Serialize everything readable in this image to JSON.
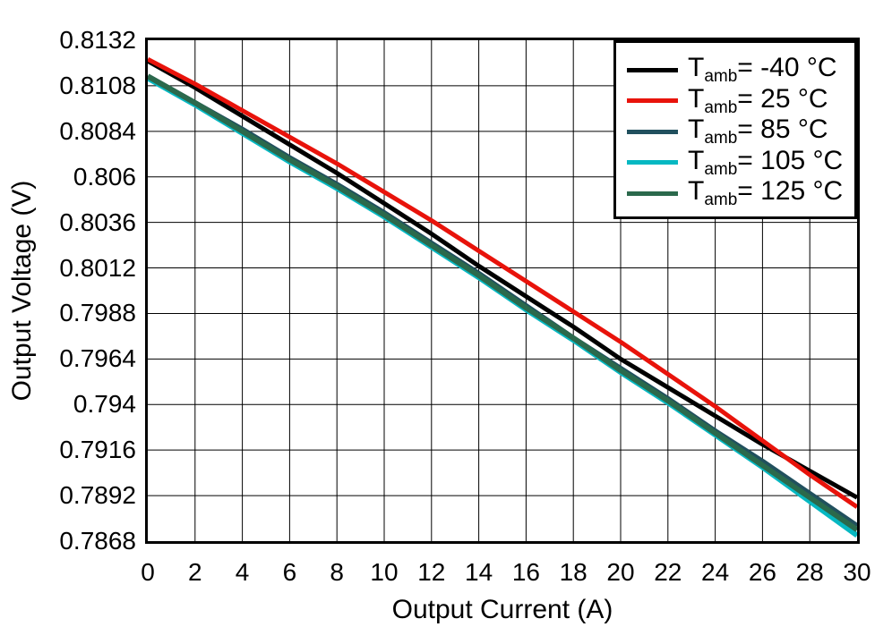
{
  "axes": {
    "x_title": "Output Current (A)",
    "y_title": "Output Voltage (V)",
    "x_tick_labels": [
      "0",
      "2",
      "4",
      "6",
      "8",
      "10",
      "12",
      "14",
      "16",
      "18",
      "20",
      "22",
      "24",
      "26",
      "28",
      "30"
    ],
    "y_tick_labels": [
      "0.8132",
      "0.8108",
      "0.8084",
      "0.806",
      "0.8036",
      "0.8012",
      "0.7988",
      "0.7964",
      "0.794",
      "0.7916",
      "0.7892",
      "0.7868"
    ]
  },
  "legend": {
    "items": [
      {
        "t": "T",
        "sub": "amb",
        "rest": "= -40 °C",
        "color": "#000000"
      },
      {
        "t": "T",
        "sub": "amb",
        "rest": "= 25 °C",
        "color": "#e8130b"
      },
      {
        "t": "T",
        "sub": "amb",
        "rest": "= 85 °C",
        "color": "#21505e"
      },
      {
        "t": "T",
        "sub": "amb",
        "rest": "= 105 °C",
        "color": "#06b8c2"
      },
      {
        "t": "T",
        "sub": "amb",
        "rest": "= 125 °C",
        "color": "#2b694c"
      }
    ]
  },
  "chart_data": {
    "type": "line",
    "title": "",
    "xlabel": "Output Current (A)",
    "ylabel": "Output Voltage (V)",
    "xlim": [
      0,
      30
    ],
    "ylim": [
      0.7868,
      0.8132
    ],
    "x_tick_step": 2,
    "y_tick_step": 0.0024,
    "grid": true,
    "legend_position": "top-right",
    "x": [
      0,
      2,
      4,
      6,
      8,
      10,
      12,
      14,
      16,
      18,
      20,
      22,
      24,
      26,
      28,
      30
    ],
    "series": [
      {
        "name": "Tamb = -40 °C",
        "color": "#000000",
        "stroke_width": 5,
        "values": [
          0.8121,
          0.8107,
          0.8092,
          0.8077,
          0.8062,
          0.8046,
          0.803,
          0.8013,
          0.7997,
          0.7981,
          0.7964,
          0.7949,
          0.7934,
          0.7919,
          0.7905,
          0.7891
        ]
      },
      {
        "name": "Tamb = 25 °C",
        "color": "#e8130b",
        "stroke_width": 5,
        "values": [
          0.8122,
          0.8109,
          0.8095,
          0.8081,
          0.8067,
          0.8052,
          0.8037,
          0.8021,
          0.8005,
          0.7989,
          0.7973,
          0.7956,
          0.7939,
          0.7921,
          0.7903,
          0.7886
        ]
      },
      {
        "name": "Tamb = 85 °C",
        "color": "#21505e",
        "stroke_width": 6,
        "values": [
          0.8113,
          0.8099,
          0.8085,
          0.807,
          0.8056,
          0.8041,
          0.8025,
          0.8009,
          0.7992,
          0.7975,
          0.7959,
          0.7943,
          0.7926,
          0.791,
          0.7893,
          0.7876
        ]
      },
      {
        "name": "Tamb = 105 °C",
        "color": "#06b8c2",
        "stroke_width": 6,
        "values": [
          0.8112,
          0.8098,
          0.8083,
          0.8068,
          0.8054,
          0.8039,
          0.8023,
          0.8007,
          0.799,
          0.7974,
          0.7957,
          0.7941,
          0.7924,
          0.7907,
          0.7889,
          0.7871
        ]
      },
      {
        "name": "Tamb = 125 °C",
        "color": "#2b694c",
        "stroke_width": 6,
        "values": [
          0.8113,
          0.8099,
          0.8084,
          0.8069,
          0.8055,
          0.804,
          0.8024,
          0.8008,
          0.7991,
          0.7975,
          0.7958,
          0.7942,
          0.7925,
          0.7908,
          0.7891,
          0.7874
        ]
      }
    ],
    "draw_order": [
      2,
      3,
      4,
      0,
      1
    ]
  }
}
